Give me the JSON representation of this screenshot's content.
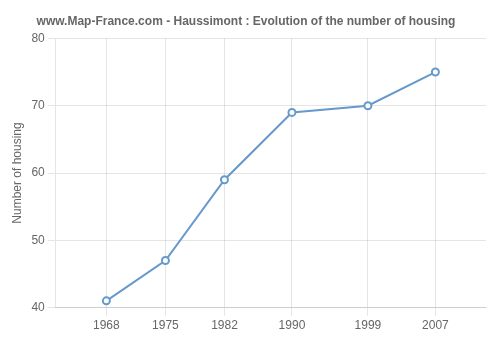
{
  "chart_data": {
    "type": "line",
    "title": "www.Map-France.com - Haussimont : Evolution of the number of housing",
    "ylabel": "Number of housing",
    "x": [
      1968,
      1975,
      1982,
      1990,
      1999,
      2007
    ],
    "values": [
      41,
      47,
      59,
      69,
      70,
      75
    ],
    "color": "#6699cc",
    "marker": "circle",
    "xlim": [
      1962,
      2013
    ],
    "xticks": [
      1968,
      1975,
      1982,
      1990,
      1999,
      2007
    ],
    "ylim": [
      40,
      80
    ],
    "yticks": [
      40,
      50,
      60,
      70,
      80
    ],
    "grid": true
  }
}
